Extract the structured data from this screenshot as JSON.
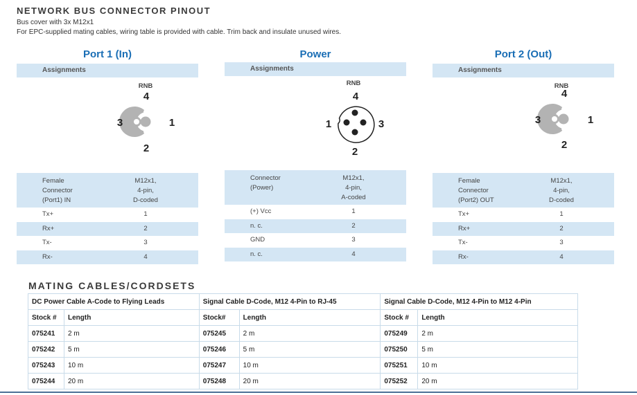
{
  "header": {
    "title": "NETWORK BUS CONNECTOR PINOUT",
    "line1": "Bus cover with 3x M12x1",
    "line2": "For EPC-supplied mating cables, wiring table is provided with cable. Trim back and insulate unused wires."
  },
  "panels": [
    {
      "title": "Port 1 (In)",
      "assign": "Assignments",
      "rnb": "RNB",
      "pins": {
        "top": "4",
        "left": "3",
        "right": "1",
        "bottom": "2"
      },
      "info_k": [
        "Female",
        "Connector",
        "(Port1) IN"
      ],
      "info_v": [
        "M12x1,",
        "4-pin,",
        "D-coded"
      ],
      "rows": [
        {
          "k": "Tx+",
          "v": "1"
        },
        {
          "k": "Rx+",
          "v": "2"
        },
        {
          "k": "Tx-",
          "v": "3"
        },
        {
          "k": "Rx-",
          "v": "4"
        }
      ]
    },
    {
      "title": "Power",
      "assign": "Assignments",
      "rnb": "RNB",
      "pins": {
        "top": "4",
        "left": "1",
        "right": "3",
        "bottom": "2"
      },
      "info_k": [
        "Connector",
        "(Power)",
        ""
      ],
      "info_v": [
        "M12x1,",
        "4-pin,",
        "A-coded"
      ],
      "rows": [
        {
          "k": "(+) Vcc",
          "v": "1"
        },
        {
          "k": "n. c.",
          "v": "2"
        },
        {
          "k": "GND",
          "v": "3"
        },
        {
          "k": "n. c.",
          "v": "4"
        }
      ]
    },
    {
      "title": "Port 2 (Out)",
      "assign": "Assignments",
      "rnb": "RNB",
      "pins": {
        "top": "4",
        "left": "3",
        "right": "1",
        "bottom": "2"
      },
      "info_k": [
        "Female",
        "Connector",
        "(Port2) OUT"
      ],
      "info_v": [
        "M12x1,",
        "4-pin,",
        "D-coded"
      ],
      "rows": [
        {
          "k": "Tx+",
          "v": "1"
        },
        {
          "k": "Rx+",
          "v": "2"
        },
        {
          "k": "Tx-",
          "v": "3"
        },
        {
          "k": "Rx-",
          "v": "4"
        }
      ]
    }
  ],
  "mating": {
    "title": "MATING CABLES/CORDSETS",
    "groups": [
      "DC Power Cable A-Code to Flying Leads",
      "Signal Cable D-Code, M12 4-Pin to RJ-45",
      "Signal Cable D-Code, M12 4-Pin to M12 4-Pin"
    ],
    "subheaders": [
      [
        "Stock #",
        "Length"
      ],
      [
        "Stock#",
        "Length"
      ],
      [
        "Stock #",
        "Length"
      ]
    ],
    "rows": [
      [
        "075241",
        "2 m",
        "075245",
        "2 m",
        "075249",
        "2 m"
      ],
      [
        "075242",
        "5 m",
        "075246",
        "5 m",
        "075250",
        "5 m"
      ],
      [
        "075243",
        "10 m",
        "075247",
        "10 m",
        "075251",
        "10 m"
      ],
      [
        "075244",
        "20 m",
        "075248",
        "20 m",
        "075252",
        "20 m"
      ]
    ]
  },
  "colors": {
    "accent": "#1a6eb5",
    "band": "#d4e6f4",
    "connector": "#b3b3b3"
  }
}
